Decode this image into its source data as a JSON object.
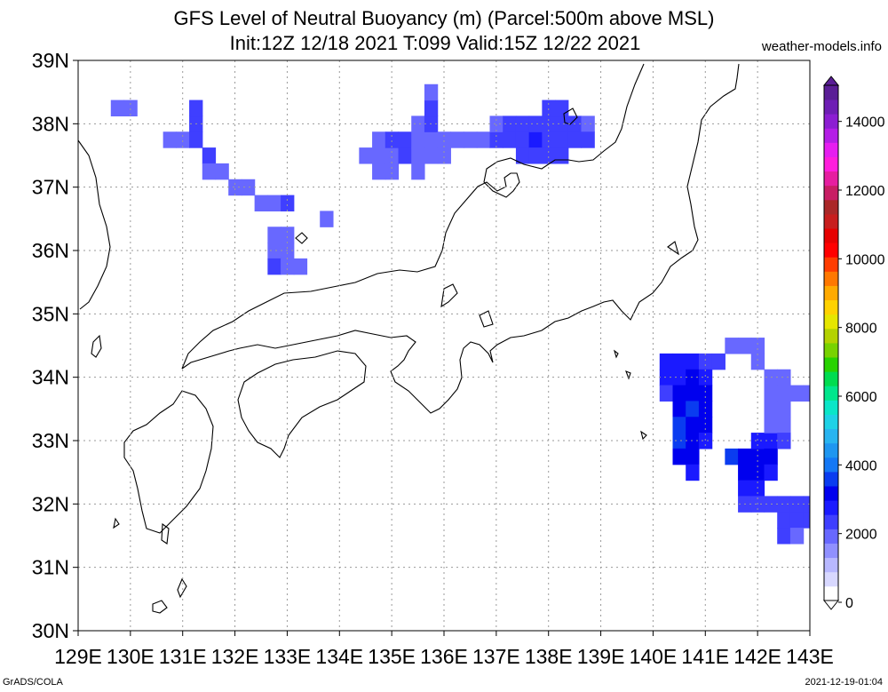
{
  "title_line1": "GFS Level of Neutral Buoyancy (m) (Parcel:500m above MSL)",
  "title_line2": "Init:12Z 12/18 2021 T:099 Valid:15Z 12/22 2021",
  "source": "weather-models.info",
  "footer_left": "GrADS/COLA",
  "footer_right": "2021-12-19-01:04",
  "map": {
    "lon_range": [
      129,
      143
    ],
    "lat_range": [
      30,
      39
    ],
    "x_tick_labels": [
      "129E",
      "130E",
      "131E",
      "132E",
      "133E",
      "134E",
      "135E",
      "136E",
      "137E",
      "138E",
      "139E",
      "140E",
      "141E",
      "142E",
      "143E"
    ],
    "y_tick_labels": [
      "30N",
      "31N",
      "32N",
      "33N",
      "34N",
      "35N",
      "36N",
      "37N",
      "38N",
      "39N"
    ],
    "grid": "dotted"
  },
  "colorbar": {
    "labels": [
      "0",
      "2000",
      "4000",
      "6000",
      "8000",
      "10000",
      "12000",
      "14000"
    ],
    "colors": [
      "#ffffff",
      "#d8d8ff",
      "#b8b8ff",
      "#9090ff",
      "#6868ff",
      "#3f3fff",
      "#1a1aff",
      "#0000ee",
      "#0a3cf0",
      "#1478f5",
      "#1e96f0",
      "#28b4f0",
      "#1ed2e6",
      "#0ae6c8",
      "#00e68c",
      "#00dc50",
      "#28d200",
      "#78d200",
      "#b4d200",
      "#e6e600",
      "#ffd200",
      "#ffaa00",
      "#ff7800",
      "#ff3c00",
      "#ff0000",
      "#e60000",
      "#c81e1e",
      "#aa2828",
      "#c81e64",
      "#e61ea0",
      "#ff1edc",
      "#e61ef0",
      "#b41ee6",
      "#8c1ed2",
      "#6e1eb4",
      "#5a1e96"
    ]
  },
  "lnb_cells": [
    {
      "lon": 129.75,
      "lat": 38.25,
      "value": 1600
    },
    {
      "lon": 130.0,
      "lat": 38.25,
      "value": 1700
    },
    {
      "lon": 130.75,
      "lat": 37.75,
      "value": 1800
    },
    {
      "lon": 131.0,
      "lat": 37.75,
      "value": 1900
    },
    {
      "lon": 131.25,
      "lat": 37.75,
      "value": 2100
    },
    {
      "lon": 131.25,
      "lat": 38.0,
      "value": 2300
    },
    {
      "lon": 131.25,
      "lat": 38.25,
      "value": 2000
    },
    {
      "lon": 131.5,
      "lat": 37.5,
      "value": 2100
    },
    {
      "lon": 131.5,
      "lat": 37.25,
      "value": 1900
    },
    {
      "lon": 131.75,
      "lat": 37.25,
      "value": 1800
    },
    {
      "lon": 132.0,
      "lat": 37.0,
      "value": 1700
    },
    {
      "lon": 132.25,
      "lat": 37.0,
      "value": 1800
    },
    {
      "lon": 132.5,
      "lat": 36.75,
      "value": 1700
    },
    {
      "lon": 132.75,
      "lat": 36.75,
      "value": 1800
    },
    {
      "lon": 133.0,
      "lat": 36.75,
      "value": 2000
    },
    {
      "lon": 132.75,
      "lat": 36.0,
      "value": 1800
    },
    {
      "lon": 133.0,
      "lat": 36.0,
      "value": 1600
    },
    {
      "lon": 132.75,
      "lat": 36.25,
      "value": 1700
    },
    {
      "lon": 133.0,
      "lat": 36.25,
      "value": 1700
    },
    {
      "lon": 132.75,
      "lat": 35.75,
      "value": 2100
    },
    {
      "lon": 133.0,
      "lat": 35.75,
      "value": 1900
    },
    {
      "lon": 133.25,
      "lat": 35.75,
      "value": 1800
    },
    {
      "lon": 133.75,
      "lat": 36.5,
      "value": 1600
    },
    {
      "lon": 134.5,
      "lat": 37.5,
      "value": 1700
    },
    {
      "lon": 134.75,
      "lat": 37.5,
      "value": 1800
    },
    {
      "lon": 134.75,
      "lat": 37.75,
      "value": 1900
    },
    {
      "lon": 134.75,
      "lat": 37.25,
      "value": 1700
    },
    {
      "lon": 135.0,
      "lat": 37.5,
      "value": 1900
    },
    {
      "lon": 135.0,
      "lat": 37.75,
      "value": 2100
    },
    {
      "lon": 135.0,
      "lat": 37.25,
      "value": 1700
    },
    {
      "lon": 135.25,
      "lat": 37.5,
      "value": 2000
    },
    {
      "lon": 135.25,
      "lat": 37.75,
      "value": 2000
    },
    {
      "lon": 135.5,
      "lat": 37.5,
      "value": 1700
    },
    {
      "lon": 135.5,
      "lat": 37.75,
      "value": 1800
    },
    {
      "lon": 135.5,
      "lat": 37.25,
      "value": 1800
    },
    {
      "lon": 135.5,
      "lat": 38.0,
      "value": 1800
    },
    {
      "lon": 135.75,
      "lat": 37.5,
      "value": 1600
    },
    {
      "lon": 135.75,
      "lat": 37.75,
      "value": 1700
    },
    {
      "lon": 135.75,
      "lat": 38.0,
      "value": 2000
    },
    {
      "lon": 135.75,
      "lat": 38.25,
      "value": 2100
    },
    {
      "lon": 135.75,
      "lat": 38.5,
      "value": 1900
    },
    {
      "lon": 136.0,
      "lat": 37.5,
      "value": 1600
    },
    {
      "lon": 136.0,
      "lat": 37.75,
      "value": 1700
    },
    {
      "lon": 136.25,
      "lat": 37.75,
      "value": 1700
    },
    {
      "lon": 136.5,
      "lat": 37.75,
      "value": 1600
    },
    {
      "lon": 136.75,
      "lat": 37.75,
      "value": 1700
    },
    {
      "lon": 137.0,
      "lat": 37.75,
      "value": 2000
    },
    {
      "lon": 137.0,
      "lat": 38.0,
      "value": 1900
    },
    {
      "lon": 137.25,
      "lat": 37.75,
      "value": 2200
    },
    {
      "lon": 137.25,
      "lat": 38.0,
      "value": 2100
    },
    {
      "lon": 137.5,
      "lat": 37.75,
      "value": 2200
    },
    {
      "lon": 137.5,
      "lat": 38.0,
      "value": 2200
    },
    {
      "lon": 137.5,
      "lat": 37.5,
      "value": 2300
    },
    {
      "lon": 137.75,
      "lat": 37.75,
      "value": 2400
    },
    {
      "lon": 137.75,
      "lat": 37.5,
      "value": 2300
    },
    {
      "lon": 137.75,
      "lat": 38.0,
      "value": 2300
    },
    {
      "lon": 138.0,
      "lat": 37.75,
      "value": 2300
    },
    {
      "lon": 138.0,
      "lat": 37.5,
      "value": 2200
    },
    {
      "lon": 138.0,
      "lat": 38.0,
      "value": 2300
    },
    {
      "lon": 138.0,
      "lat": 38.25,
      "value": 2100
    },
    {
      "lon": 138.25,
      "lat": 37.75,
      "value": 2300
    },
    {
      "lon": 138.25,
      "lat": 38.0,
      "value": 2200
    },
    {
      "lon": 138.25,
      "lat": 38.25,
      "value": 2000
    },
    {
      "lon": 138.25,
      "lat": 37.5,
      "value": 2200
    },
    {
      "lon": 138.5,
      "lat": 37.75,
      "value": 2200
    },
    {
      "lon": 138.5,
      "lat": 38.0,
      "value": 2300
    },
    {
      "lon": 138.75,
      "lat": 38.0,
      "value": 1900
    },
    {
      "lon": 138.75,
      "lat": 37.75,
      "value": 2100
    },
    {
      "lon": 140.25,
      "lat": 34.25,
      "value": 2600
    },
    {
      "lon": 140.25,
      "lat": 34.0,
      "value": 2400
    },
    {
      "lon": 140.25,
      "lat": 33.75,
      "value": 2000
    },
    {
      "lon": 140.5,
      "lat": 34.25,
      "value": 2500
    },
    {
      "lon": 140.5,
      "lat": 34.0,
      "value": 2700
    },
    {
      "lon": 140.5,
      "lat": 33.75,
      "value": 2800
    },
    {
      "lon": 140.5,
      "lat": 33.5,
      "value": 3000
    },
    {
      "lon": 140.5,
      "lat": 33.25,
      "value": 3300
    },
    {
      "lon": 140.5,
      "lat": 33.0,
      "value": 3500
    },
    {
      "lon": 140.5,
      "lat": 32.75,
      "value": 3200
    },
    {
      "lon": 140.75,
      "lat": 34.25,
      "value": 2600
    },
    {
      "lon": 140.75,
      "lat": 34.0,
      "value": 2800
    },
    {
      "lon": 140.75,
      "lat": 33.75,
      "value": 3100
    },
    {
      "lon": 140.75,
      "lat": 33.5,
      "value": 3400
    },
    {
      "lon": 140.75,
      "lat": 33.25,
      "value": 3200
    },
    {
      "lon": 140.75,
      "lat": 33.0,
      "value": 3000
    },
    {
      "lon": 140.75,
      "lat": 32.75,
      "value": 2900
    },
    {
      "lon": 140.75,
      "lat": 32.5,
      "value": 2700
    },
    {
      "lon": 141.0,
      "lat": 34.25,
      "value": 2300
    },
    {
      "lon": 141.0,
      "lat": 34.0,
      "value": 2600
    },
    {
      "lon": 141.0,
      "lat": 33.75,
      "value": 3000
    },
    {
      "lon": 141.0,
      "lat": 33.5,
      "value": 3100
    },
    {
      "lon": 141.0,
      "lat": 33.25,
      "value": 2900
    },
    {
      "lon": 141.0,
      "lat": 33.0,
      "value": 2700
    },
    {
      "lon": 141.25,
      "lat": 34.25,
      "value": 2000
    },
    {
      "lon": 141.5,
      "lat": 34.5,
      "value": 1700
    },
    {
      "lon": 141.75,
      "lat": 34.5,
      "value": 1800
    },
    {
      "lon": 142.0,
      "lat": 34.5,
      "value": 1700
    },
    {
      "lon": 142.0,
      "lat": 34.25,
      "value": 1600
    },
    {
      "lon": 141.5,
      "lat": 32.75,
      "value": 3400
    },
    {
      "lon": 141.75,
      "lat": 32.75,
      "value": 3200
    },
    {
      "lon": 141.75,
      "lat": 32.5,
      "value": 2900
    },
    {
      "lon": 141.75,
      "lat": 32.25,
      "value": 2600
    },
    {
      "lon": 141.75,
      "lat": 32.0,
      "value": 2300
    },
    {
      "lon": 142.0,
      "lat": 32.75,
      "value": 3000
    },
    {
      "lon": 142.0,
      "lat": 32.5,
      "value": 2800
    },
    {
      "lon": 142.0,
      "lat": 32.25,
      "value": 2500
    },
    {
      "lon": 142.0,
      "lat": 32.0,
      "value": 2200
    },
    {
      "lon": 142.0,
      "lat": 33.0,
      "value": 2600
    },
    {
      "lon": 142.25,
      "lat": 33.0,
      "value": 2400
    },
    {
      "lon": 142.25,
      "lat": 32.75,
      "value": 2800
    },
    {
      "lon": 142.25,
      "lat": 32.5,
      "value": 2400
    },
    {
      "lon": 142.25,
      "lat": 34.0,
      "value": 1600
    },
    {
      "lon": 142.25,
      "lat": 33.75,
      "value": 1700
    },
    {
      "lon": 142.25,
      "lat": 33.5,
      "value": 1800
    },
    {
      "lon": 142.25,
      "lat": 33.25,
      "value": 1900
    },
    {
      "lon": 142.5,
      "lat": 34.0,
      "value": 1700
    },
    {
      "lon": 142.5,
      "lat": 33.75,
      "value": 1600
    },
    {
      "lon": 142.5,
      "lat": 33.5,
      "value": 1700
    },
    {
      "lon": 142.5,
      "lat": 33.25,
      "value": 1800
    },
    {
      "lon": 142.5,
      "lat": 33.0,
      "value": 2000
    },
    {
      "lon": 142.75,
      "lat": 33.75,
      "value": 1700
    },
    {
      "lon": 143.0,
      "lat": 33.75,
      "value": 1800
    },
    {
      "lon": 142.25,
      "lat": 32.0,
      "value": 2000
    },
    {
      "lon": 142.5,
      "lat": 32.0,
      "value": 2100
    },
    {
      "lon": 142.5,
      "lat": 31.75,
      "value": 2200
    },
    {
      "lon": 142.75,
      "lat": 32.0,
      "value": 2200
    },
    {
      "lon": 142.75,
      "lat": 31.75,
      "value": 2300
    },
    {
      "lon": 143.0,
      "lat": 32.0,
      "value": 2100
    },
    {
      "lon": 143.0,
      "lat": 31.75,
      "value": 2000
    },
    {
      "lon": 142.5,
      "lat": 31.5,
      "value": 2000
    },
    {
      "lon": 142.75,
      "lat": 31.5,
      "value": 1900
    }
  ]
}
